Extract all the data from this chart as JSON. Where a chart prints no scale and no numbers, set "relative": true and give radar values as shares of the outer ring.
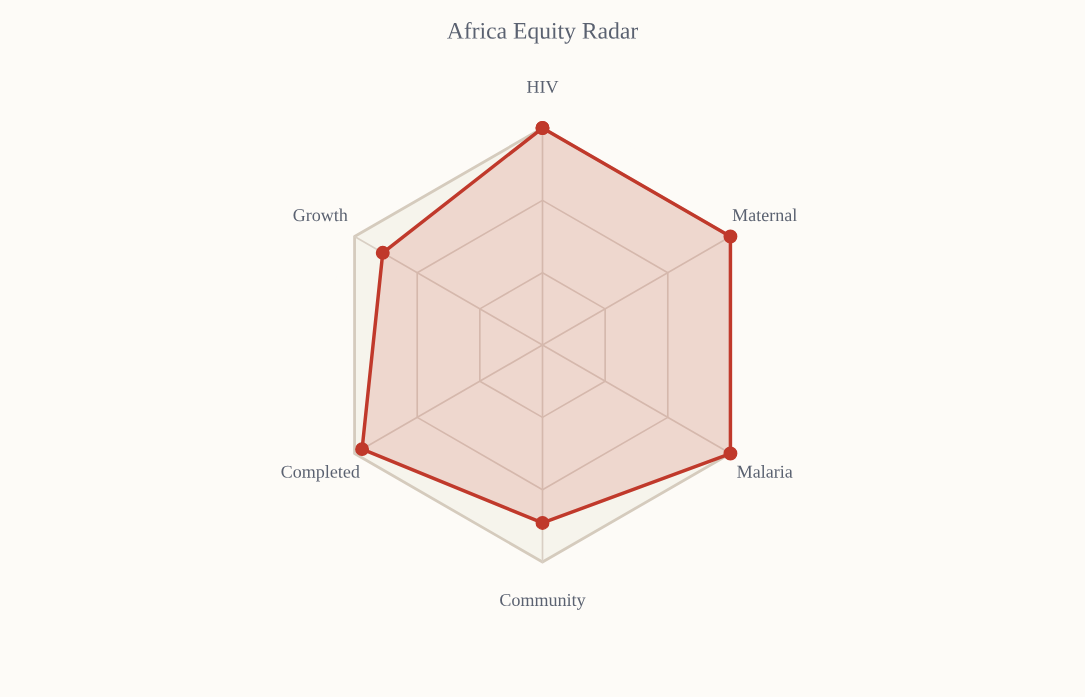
{
  "chart_data": {
    "type": "radar",
    "title": "Africa Equity Radar",
    "relative": true,
    "grid": true,
    "marker": "circle",
    "categories": [
      "HIV",
      "Maternal",
      "Malaria",
      "Community",
      "Completed",
      "Growth"
    ],
    "series": [
      {
        "color": "#c0392b",
        "values": [
          1.0,
          1.0,
          1.0,
          0.82,
          0.96,
          0.85
        ]
      }
    ]
  }
}
